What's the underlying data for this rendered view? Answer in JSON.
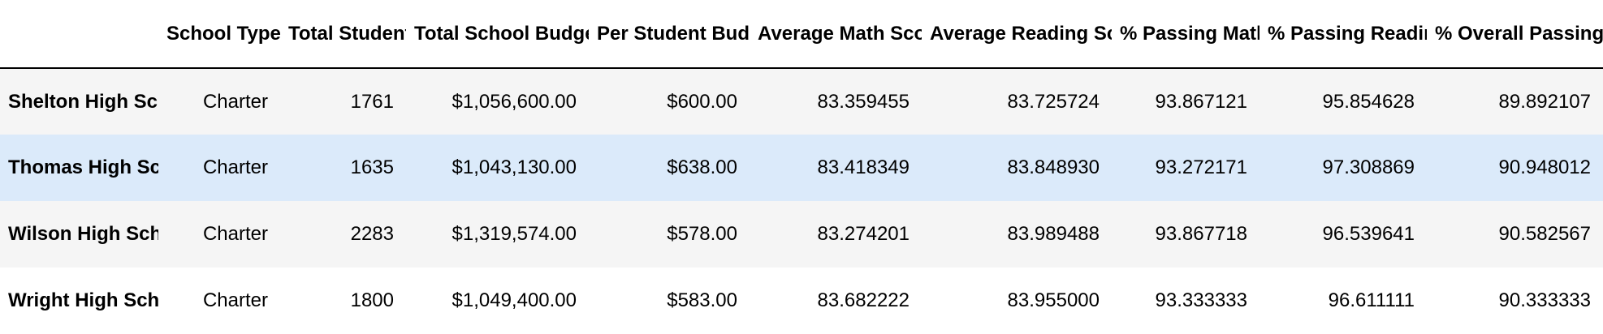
{
  "table": {
    "columns": [
      "School Type",
      "Total Students",
      "Total School Budget",
      "Per Student Budget",
      "Average Math Score",
      "Average Reading Score",
      "% Passing Math",
      "% Passing Reading",
      "% Overall Passing"
    ],
    "rows": [
      {
        "school": "Shelton High School",
        "cells": [
          "Charter",
          "1761",
          "$1,056,600.00",
          "$600.00",
          "83.359455",
          "83.725724",
          "93.867121",
          "95.854628",
          "89.892107"
        ]
      },
      {
        "school": "Thomas High School",
        "cells": [
          "Charter",
          "1635",
          "$1,043,130.00",
          "$638.00",
          "83.418349",
          "83.848930",
          "93.272171",
          "97.308869",
          "90.948012"
        ]
      },
      {
        "school": "Wilson High School",
        "cells": [
          "Charter",
          "2283",
          "$1,319,574.00",
          "$578.00",
          "83.274201",
          "83.989488",
          "93.867718",
          "96.539641",
          "90.582567"
        ]
      },
      {
        "school": "Wright High School",
        "cells": [
          "Charter",
          "1800",
          "$1,049,400.00",
          "$583.00",
          "83.682222",
          "83.955000",
          "93.333333",
          "96.611111",
          "90.333333"
        ]
      }
    ],
    "colors": {
      "stripe": "#f5f5f5",
      "hover": "#dbeafa",
      "rule": "#000000"
    }
  }
}
